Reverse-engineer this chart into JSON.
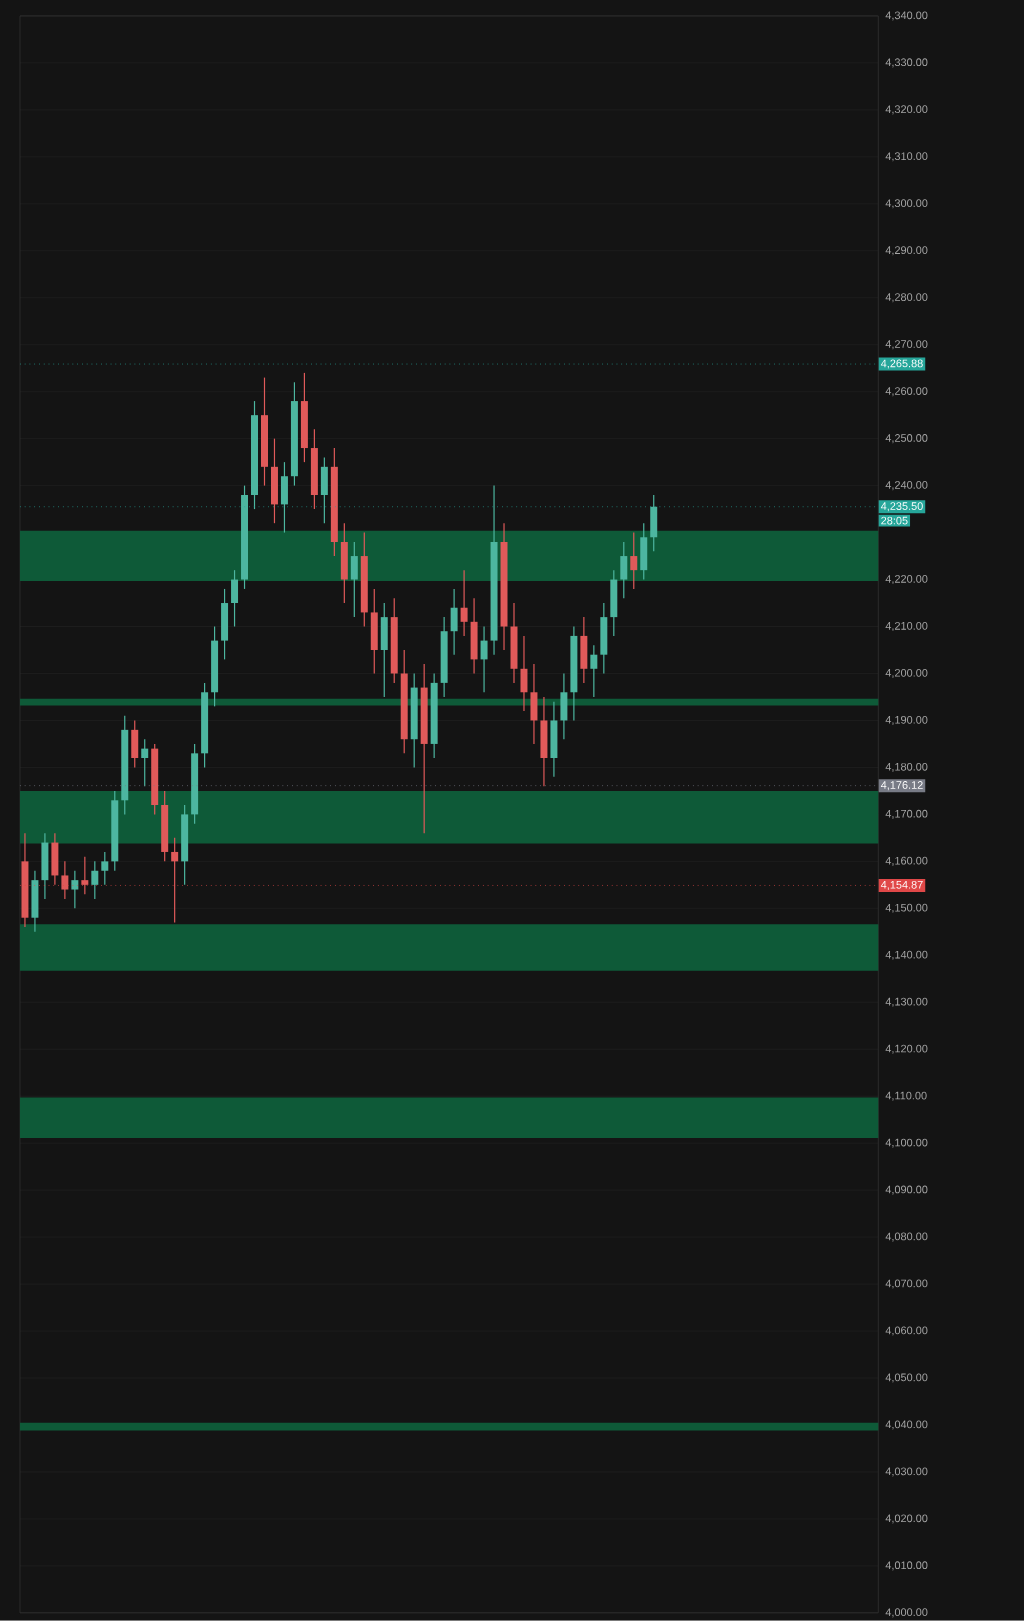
{
  "chart_data": {
    "type": "candlestick",
    "categories": [
      null,
      null,
      null,
      null,
      null,
      null,
      null,
      null,
      null,
      null,
      null,
      null,
      null,
      null,
      null,
      null,
      null,
      null,
      null,
      null,
      null,
      null,
      null,
      null,
      null,
      null,
      null,
      null,
      null,
      null,
      null,
      null,
      null,
      null,
      null,
      null,
      null,
      null,
      null,
      null,
      null,
      null,
      null,
      null,
      null,
      null,
      null,
      null,
      null,
      null,
      null,
      null,
      null,
      null,
      null,
      null,
      null,
      null,
      null,
      null,
      null,
      null,
      null,
      null,
      null,
      null,
      null,
      null,
      null,
      null,
      null,
      null,
      null,
      null,
      null,
      null,
      null,
      null,
      null,
      null,
      null,
      null,
      null,
      null,
      null,
      null
    ],
    "ohlc": [
      [
        4160,
        4166,
        4146,
        4148
      ],
      [
        4148,
        4158,
        4145,
        4156
      ],
      [
        4156,
        4166,
        4152,
        4164
      ],
      [
        4164,
        4166,
        4155,
        4157
      ],
      [
        4157,
        4160,
        4152,
        4154
      ],
      [
        4154,
        4158,
        4150,
        4156
      ],
      [
        4156,
        4161,
        4153,
        4155
      ],
      [
        4155,
        4160,
        4152,
        4158
      ],
      [
        4158,
        4162,
        4155,
        4160
      ],
      [
        4160,
        4175,
        4158,
        4173
      ],
      [
        4173,
        4191,
        4170,
        4188
      ],
      [
        4188,
        4190,
        4180,
        4182
      ],
      [
        4182,
        4186,
        4176,
        4184
      ],
      [
        4184,
        4185,
        4170,
        4172
      ],
      [
        4172,
        4175,
        4160,
        4162
      ],
      [
        4162,
        4165,
        4147,
        4160
      ],
      [
        4160,
        4172,
        4155,
        4170
      ],
      [
        4170,
        4185,
        4168,
        4183
      ],
      [
        4183,
        4198,
        4180,
        4196
      ],
      [
        4196,
        4210,
        4193,
        4207
      ],
      [
        4207,
        4218,
        4203,
        4215
      ],
      [
        4215,
        4222,
        4210,
        4220
      ],
      [
        4220,
        4240,
        4218,
        4238
      ],
      [
        4238,
        4258,
        4235,
        4255
      ],
      [
        4255,
        4263,
        4240,
        4244
      ],
      [
        4244,
        4250,
        4232,
        4236
      ],
      [
        4236,
        4245,
        4230,
        4242
      ],
      [
        4242,
        4262,
        4240,
        4258
      ],
      [
        4258,
        4264,
        4245,
        4248
      ],
      [
        4248,
        4252,
        4235,
        4238
      ],
      [
        4238,
        4246,
        4232,
        4244
      ],
      [
        4244,
        4248,
        4225,
        4228
      ],
      [
        4228,
        4232,
        4215,
        4220
      ],
      [
        4220,
        4228,
        4212,
        4225
      ],
      [
        4225,
        4230,
        4210,
        4213
      ],
      [
        4213,
        4218,
        4200,
        4205
      ],
      [
        4205,
        4215,
        4195,
        4212
      ],
      [
        4212,
        4216,
        4198,
        4200
      ],
      [
        4200,
        4205,
        4183,
        4186
      ],
      [
        4186,
        4200,
        4180,
        4197
      ],
      [
        4197,
        4202,
        4166,
        4185
      ],
      [
        4185,
        4200,
        4182,
        4198
      ],
      [
        4198,
        4212,
        4195,
        4209
      ],
      [
        4209,
        4218,
        4204,
        4214
      ],
      [
        4214,
        4222,
        4208,
        4211
      ],
      [
        4211,
        4216,
        4200,
        4203
      ],
      [
        4203,
        4210,
        4196,
        4207
      ],
      [
        4207,
        4240,
        4204,
        4228
      ],
      [
        4228,
        4232,
        4205,
        4210
      ],
      [
        4210,
        4215,
        4198,
        4201
      ],
      [
        4201,
        4208,
        4192,
        4196
      ],
      [
        4196,
        4202,
        4185,
        4190
      ],
      [
        4190,
        4195,
        4176,
        4182
      ],
      [
        4182,
        4194,
        4178,
        4190
      ],
      [
        4190,
        4200,
        4186,
        4196
      ],
      [
        4196,
        4210,
        4190,
        4208
      ],
      [
        4208,
        4212,
        4198,
        4201
      ],
      [
        4201,
        4206,
        4195,
        4204
      ],
      [
        4204,
        4215,
        4200,
        4212
      ],
      [
        4212,
        4222,
        4208,
        4220
      ],
      [
        4220,
        4228,
        4216,
        4225
      ],
      [
        4225,
        4230,
        4218,
        4222
      ],
      [
        4222,
        4232,
        4220,
        4229
      ],
      [
        4229,
        4238,
        4226,
        4235.5
      ],
      null,
      null,
      null,
      null,
      null,
      null,
      null,
      null,
      null,
      null,
      null,
      null,
      null,
      null,
      null,
      null,
      null,
      null,
      null,
      null,
      null,
      null
    ],
    "colors": [
      "#e05a5a",
      "#4db6a0",
      "#4db6a0",
      "#e05a5a",
      "#e05a5a",
      "#4db6a0",
      "#e05a5a",
      "#4db6a0",
      "#4db6a0",
      "#4db6a0",
      "#4db6a0",
      "#e05a5a",
      "#4db6a0",
      "#e05a5a",
      "#e05a5a",
      "#e05a5a",
      "#4db6a0",
      "#4db6a0",
      "#4db6a0",
      "#4db6a0",
      "#4db6a0",
      "#4db6a0",
      "#4db6a0",
      "#4db6a0",
      "#e05a5a",
      "#e05a5a",
      "#4db6a0",
      "#4db6a0",
      "#e05a5a",
      "#e05a5a",
      "#4db6a0",
      "#e05a5a",
      "#e05a5a",
      "#4db6a0",
      "#e05a5a",
      "#e05a5a",
      "#4db6a0",
      "#e05a5a",
      "#e05a5a",
      "#4db6a0",
      "#e05a5a",
      "#4db6a0",
      "#4db6a0",
      "#4db6a0",
      "#e05a5a",
      "#e05a5a",
      "#4db6a0",
      "#4db6a0",
      "#e05a5a",
      "#e05a5a",
      "#e05a5a",
      "#e05a5a",
      "#e05a5a",
      "#4db6a0",
      "#4db6a0",
      "#4db6a0",
      "#e05a5a",
      "#4db6a0",
      "#4db6a0",
      "#4db6a0",
      "#4db6a0",
      "#e05a5a",
      "#4db6a0",
      "#4db6a0",
      null,
      null,
      null,
      null,
      null,
      null,
      null,
      null,
      null,
      null,
      null,
      null,
      null,
      null,
      null,
      null,
      null,
      null,
      null,
      null,
      null,
      null
    ],
    "ylim": [
      4000,
      4340
    ],
    "yticks": [
      {
        "value": 4000,
        "label": "4,000.00"
      },
      {
        "value": 4010,
        "label": "4,010.00"
      },
      {
        "value": 4020,
        "label": "4,020.00"
      },
      {
        "value": 4030,
        "label": "4,030.00"
      },
      {
        "value": 4040,
        "label": "4,040.00"
      },
      {
        "value": 4050,
        "label": "4,050.00"
      },
      {
        "value": 4060,
        "label": "4,060.00"
      },
      {
        "value": 4070,
        "label": "4,070.00"
      },
      {
        "value": 4080,
        "label": "4,080.00"
      },
      {
        "value": 4090,
        "label": "4,090.00"
      },
      {
        "value": 4100,
        "label": "4,100.00"
      },
      {
        "value": 4110,
        "label": "4,110.00"
      },
      {
        "value": 4120,
        "label": "4,120.00"
      },
      {
        "value": 4130,
        "label": "4,130.00"
      },
      {
        "value": 4140,
        "label": "4,140.00"
      },
      {
        "value": 4150,
        "label": "4,150.00"
      },
      {
        "value": 4160,
        "label": "4,160.00"
      },
      {
        "value": 4170,
        "label": "4,170.00"
      },
      {
        "value": 4180,
        "label": "4,180.00"
      },
      {
        "value": 4190,
        "label": "4,190.00"
      },
      {
        "value": 4200,
        "label": "4,200.00"
      },
      {
        "value": 4210,
        "label": "4,210.00"
      },
      {
        "value": 4220,
        "label": "4,220.00"
      },
      {
        "value": 4230,
        "label": null
      },
      {
        "value": 4240,
        "label": "4,240.00"
      },
      {
        "value": 4250,
        "label": "4,250.00"
      },
      {
        "value": 4260,
        "label": "4,260.00"
      },
      {
        "value": 4270,
        "label": "4,270.00"
      },
      {
        "value": 4280,
        "label": "4,280.00"
      },
      {
        "value": 4290,
        "label": "4,290.00"
      },
      {
        "value": 4300,
        "label": "4,300.00"
      },
      {
        "value": 4310,
        "label": "4,310.00"
      },
      {
        "value": 4320,
        "label": "4,320.00"
      },
      {
        "value": 4330,
        "label": "4,330.00"
      },
      {
        "value": 4340,
        "label": "4,340.00"
      }
    ],
    "tick_labels": "y",
    "grid": "y",
    "bands": [
      {
        "axis": "y",
        "from": 4219.7,
        "to": 4230.4,
        "color": "#0e5a38"
      },
      {
        "axis": "y",
        "from": 4193.2,
        "to": 4194.6,
        "color": "#0e5a38"
      },
      {
        "axis": "y",
        "from": 4163.8,
        "to": 4175,
        "color": "#0e5a38"
      },
      {
        "axis": "y",
        "from": 4136.7,
        "to": 4146.6,
        "color": "#0e5a38"
      },
      {
        "axis": "y",
        "from": 4101.1,
        "to": 4109.7,
        "color": "#0e5a38"
      },
      {
        "axis": "y",
        "from": 4038.8,
        "to": 4040.5,
        "color": "#0e5a38"
      }
    ],
    "ref_lines": [
      {
        "axis": "y",
        "value": 4265.88,
        "label": "4,265.88",
        "color": "#26a69a",
        "line_style": "dotted"
      },
      {
        "axis": "y",
        "value": 4235.5,
        "label": "4,235.50",
        "color": "#26a69a",
        "line_style": "dotted"
      },
      {
        "axis": "y",
        "value": 4176.12,
        "label": "4,176.12",
        "color": "#787b86",
        "line_style": "dotted"
      },
      {
        "axis": "y",
        "value": 4154.87,
        "label": "4,154.87",
        "color": "#e04848",
        "line_style": "dotted"
      }
    ],
    "annotations": [
      "28:05"
    ]
  }
}
